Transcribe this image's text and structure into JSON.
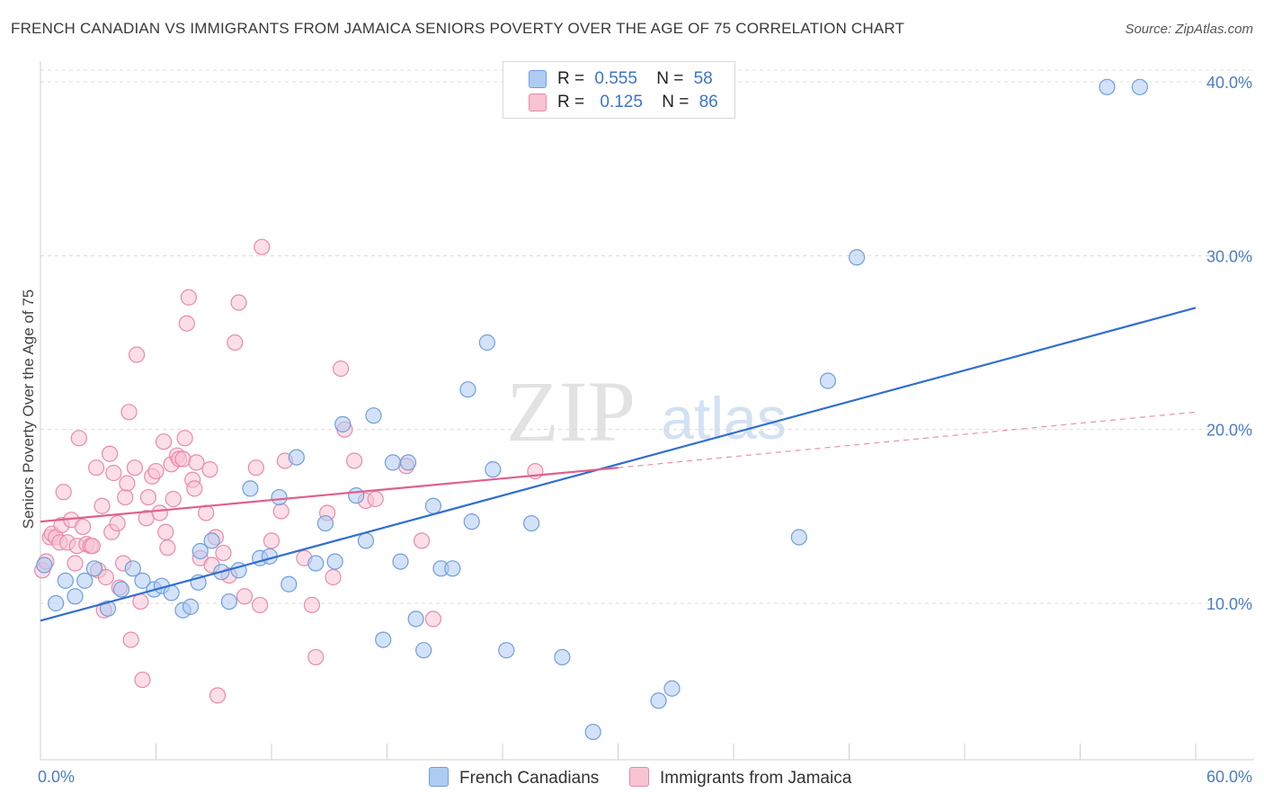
{
  "title": "FRENCH CANADIAN VS IMMIGRANTS FROM JAMAICA SENIORS POVERTY OVER THE AGE OF 75 CORRELATION CHART",
  "source": "Source: ZipAtlas.com",
  "watermark": {
    "zip": "ZIP",
    "atlas": "atlas"
  },
  "legend": {
    "r_label": "R =",
    "n_label": "N =",
    "rows": [
      {
        "r": "0.555",
        "n": "58",
        "color": "#a9c8f0"
      },
      {
        "r": "0.125",
        "n": "86",
        "color": "#f7bfd0"
      }
    ]
  },
  "colors": {
    "blue_fill": "#aecbf2",
    "blue_stroke": "#6f9fdc",
    "blue_line": "#2f6fcf",
    "pink_fill": "#f8c3d3",
    "pink_stroke": "#e98aa9",
    "pink_line": "#e0608b",
    "grid": "#dcdcdc",
    "axis_text": "#4a7cc9"
  },
  "chart_data": {
    "type": "scatter",
    "title": "FRENCH CANADIAN VS IMMIGRANTS FROM JAMAICA SENIORS POVERTY OVER THE AGE OF 75 CORRELATION CHART",
    "xlabel": "",
    "ylabel": "Seniors Poverty Over the Age of 75",
    "xlim": [
      0,
      60
    ],
    "ylim": [
      1.0,
      41.5
    ],
    "x_tick_labels": [
      "0.0%",
      "60.0%"
    ],
    "y_ticks": [
      10,
      20,
      30,
      40
    ],
    "y_tick_labels": [
      "10.0%",
      "20.0%",
      "30.0%",
      "40.0%"
    ],
    "grid": "horizontal dashed",
    "legend_position": "top-center",
    "series": [
      {
        "name": "French Canadians",
        "color": "#aecbf2",
        "r": 0.555,
        "n": 58,
        "trend": {
          "x": [
            0,
            60
          ],
          "y": [
            9.0,
            27.0
          ],
          "style": "solid"
        },
        "points": [
          [
            0.2,
            12.2
          ],
          [
            0.8,
            10.0
          ],
          [
            1.3,
            11.3
          ],
          [
            1.8,
            10.4
          ],
          [
            2.3,
            11.3
          ],
          [
            2.8,
            12.0
          ],
          [
            3.5,
            9.7
          ],
          [
            4.2,
            10.8
          ],
          [
            4.8,
            12.0
          ],
          [
            5.3,
            11.3
          ],
          [
            5.9,
            10.8
          ],
          [
            6.3,
            11.0
          ],
          [
            6.8,
            10.6
          ],
          [
            7.4,
            9.6
          ],
          [
            7.8,
            9.8
          ],
          [
            8.3,
            13.0
          ],
          [
            8.9,
            13.6
          ],
          [
            9.4,
            11.8
          ],
          [
            9.8,
            10.1
          ],
          [
            10.3,
            11.9
          ],
          [
            10.9,
            16.6
          ],
          [
            11.4,
            12.6
          ],
          [
            11.9,
            12.7
          ],
          [
            12.4,
            16.1
          ],
          [
            12.9,
            11.1
          ],
          [
            13.3,
            18.4
          ],
          [
            14.3,
            12.3
          ],
          [
            14.8,
            14.6
          ],
          [
            15.3,
            12.4
          ],
          [
            15.7,
            20.3
          ],
          [
            16.4,
            16.2
          ],
          [
            16.9,
            13.6
          ],
          [
            17.3,
            20.8
          ],
          [
            17.8,
            7.9
          ],
          [
            18.3,
            18.1
          ],
          [
            18.7,
            12.4
          ],
          [
            19.1,
            18.1
          ],
          [
            19.5,
            9.1
          ],
          [
            19.9,
            7.3
          ],
          [
            20.4,
            15.6
          ],
          [
            20.8,
            12.0
          ],
          [
            21.4,
            12.0
          ],
          [
            22.2,
            22.3
          ],
          [
            22.4,
            14.7
          ],
          [
            23.2,
            25.0
          ],
          [
            23.5,
            17.7
          ],
          [
            24.2,
            7.3
          ],
          [
            25.5,
            14.6
          ],
          [
            27.1,
            6.9
          ],
          [
            28.7,
            2.6
          ],
          [
            32.1,
            4.4
          ],
          [
            32.8,
            5.1
          ],
          [
            39.4,
            13.8
          ],
          [
            40.9,
            22.8
          ],
          [
            42.4,
            29.9
          ],
          [
            55.4,
            39.7
          ],
          [
            57.1,
            39.7
          ],
          [
            8.2,
            11.2
          ]
        ]
      },
      {
        "name": "Immigrants from Jamaica",
        "color": "#f8c3d3",
        "r": 0.125,
        "n": 86,
        "trend": {
          "x": [
            0,
            30
          ],
          "y": [
            14.7,
            17.8
          ],
          "style": "solid",
          "extended_dashed_to": [
            60,
            21.0
          ]
        },
        "points": [
          [
            0.1,
            11.9
          ],
          [
            0.3,
            12.4
          ],
          [
            0.5,
            13.8
          ],
          [
            0.6,
            14.0
          ],
          [
            0.8,
            13.8
          ],
          [
            1.0,
            13.5
          ],
          [
            1.1,
            14.5
          ],
          [
            1.2,
            16.4
          ],
          [
            1.4,
            13.5
          ],
          [
            1.6,
            14.8
          ],
          [
            1.8,
            12.3
          ],
          [
            1.9,
            13.3
          ],
          [
            2.0,
            19.5
          ],
          [
            2.2,
            14.4
          ],
          [
            2.4,
            13.4
          ],
          [
            2.6,
            13.3
          ],
          [
            2.7,
            13.3
          ],
          [
            2.9,
            17.8
          ],
          [
            3.0,
            11.9
          ],
          [
            3.2,
            15.6
          ],
          [
            3.3,
            9.6
          ],
          [
            3.4,
            11.5
          ],
          [
            3.6,
            18.6
          ],
          [
            3.7,
            14.1
          ],
          [
            3.8,
            17.5
          ],
          [
            4.0,
            14.6
          ],
          [
            4.1,
            10.9
          ],
          [
            4.3,
            12.3
          ],
          [
            4.4,
            16.1
          ],
          [
            4.5,
            16.9
          ],
          [
            4.6,
            21.0
          ],
          [
            4.7,
            7.9
          ],
          [
            4.9,
            17.8
          ],
          [
            5.0,
            24.3
          ],
          [
            5.2,
            10.1
          ],
          [
            5.3,
            5.6
          ],
          [
            5.5,
            14.9
          ],
          [
            5.6,
            16.1
          ],
          [
            5.8,
            17.3
          ],
          [
            6.0,
            17.6
          ],
          [
            6.2,
            15.2
          ],
          [
            6.4,
            19.3
          ],
          [
            6.5,
            14.1
          ],
          [
            6.6,
            13.2
          ],
          [
            6.8,
            18.0
          ],
          [
            6.9,
            16.0
          ],
          [
            7.1,
            18.5
          ],
          [
            7.2,
            18.3
          ],
          [
            7.4,
            18.3
          ],
          [
            7.5,
            19.5
          ],
          [
            7.6,
            26.1
          ],
          [
            7.7,
            27.6
          ],
          [
            7.9,
            17.1
          ],
          [
            8.0,
            16.6
          ],
          [
            8.1,
            18.1
          ],
          [
            8.3,
            12.6
          ],
          [
            8.6,
            15.2
          ],
          [
            8.8,
            17.7
          ],
          [
            8.9,
            12.2
          ],
          [
            9.1,
            13.8
          ],
          [
            9.2,
            4.7
          ],
          [
            9.5,
            12.9
          ],
          [
            9.8,
            11.6
          ],
          [
            10.1,
            25.0
          ],
          [
            10.3,
            27.3
          ],
          [
            10.6,
            10.4
          ],
          [
            11.2,
            17.8
          ],
          [
            11.4,
            9.9
          ],
          [
            11.5,
            30.5
          ],
          [
            12.0,
            13.6
          ],
          [
            12.5,
            15.3
          ],
          [
            12.7,
            18.2
          ],
          [
            13.7,
            12.6
          ],
          [
            14.1,
            9.9
          ],
          [
            14.3,
            6.9
          ],
          [
            14.9,
            15.2
          ],
          [
            15.2,
            11.5
          ],
          [
            15.6,
            23.5
          ],
          [
            15.8,
            20.0
          ],
          [
            16.3,
            18.2
          ],
          [
            16.9,
            15.9
          ],
          [
            17.4,
            16.0
          ],
          [
            19.0,
            17.9
          ],
          [
            19.8,
            13.6
          ],
          [
            20.4,
            9.1
          ],
          [
            25.7,
            17.6
          ]
        ]
      }
    ]
  }
}
